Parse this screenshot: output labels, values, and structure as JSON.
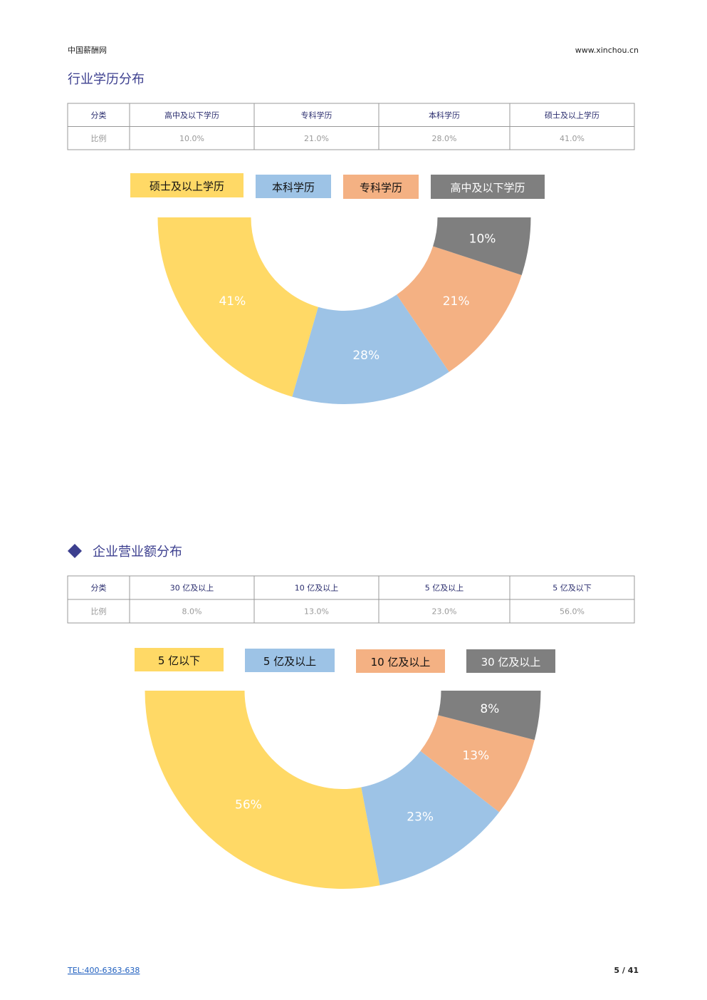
{
  "header": {
    "left": "中国薪酬网",
    "right": "www.xinchou.cn"
  },
  "sections": [
    {
      "title": "行业学历分布",
      "table": {
        "rows": [
          [
            "分类",
            "高中及以下学历",
            "专科学历",
            "本科学历",
            "硕士及以上学历"
          ],
          [
            "比例",
            "10.0%",
            "21.0%",
            "28.0%",
            "41.0%"
          ]
        ]
      },
      "chart": {
        "type": "pie",
        "categories": [
          "硕士及以上学历",
          "本科学历",
          "专科学历",
          "高中及以下学历"
        ],
        "values": [
          41,
          28,
          21,
          10
        ],
        "value_labels": [
          "41%",
          "28%",
          "21%",
          "10%"
        ],
        "colors": [
          "#ffd966",
          "#9dc3e6",
          "#f4b183",
          "#7f7f7f"
        ]
      }
    },
    {
      "title": "企业营业额分布",
      "table": {
        "rows": [
          [
            "分类",
            "30 亿及以上",
            "10 亿及以上",
            "5 亿及以上",
            "5 亿及以下"
          ],
          [
            "比例",
            "8.0%",
            "13.0%",
            "23.0%",
            "56.0%"
          ]
        ]
      },
      "chart": {
        "type": "pie",
        "categories": [
          "5 亿以下",
          "5 亿及以上",
          "10 亿及以上",
          "30 亿及以上"
        ],
        "values": [
          56,
          23,
          13,
          8
        ],
        "value_labels": [
          "56%",
          "23%",
          "13%",
          "8%"
        ],
        "colors": [
          "#ffd966",
          "#9dc3e6",
          "#f4b183",
          "#7f7f7f"
        ]
      }
    }
  ],
  "footer": {
    "tel": "TEL:400-6363-638",
    "page": "5 / 41"
  }
}
